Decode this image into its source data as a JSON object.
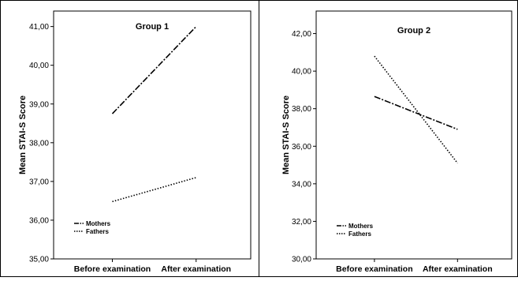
{
  "chart_data": [
    {
      "type": "line",
      "title": "Group 1",
      "xlabel": "",
      "ylabel": "Mean STAI-S Score",
      "categories": [
        "Before examination",
        "After examination"
      ],
      "ylim": [
        35,
        41.4
      ],
      "yticks": [
        "35,00",
        "36,00",
        "37,00",
        "38,00",
        "39,00",
        "40,00",
        "41,00"
      ],
      "ytick_values": [
        35,
        36,
        37,
        38,
        39,
        40,
        41
      ],
      "grid": false,
      "legend": "bottom-left",
      "series": [
        {
          "name": "Mothers",
          "values": [
            38.75,
            41.0
          ],
          "dash": "dashdot"
        },
        {
          "name": "Fathers",
          "values": [
            36.48,
            37.1
          ],
          "dash": "dotted"
        }
      ]
    },
    {
      "type": "line",
      "title": "Group 2",
      "xlabel": "",
      "ylabel": "Mean STAI-S Score",
      "categories": [
        "Before examination",
        "After examination"
      ],
      "ylim": [
        30,
        43.2
      ],
      "yticks": [
        "30,00",
        "32,00",
        "34,00",
        "36,00",
        "38,00",
        "40,00",
        "42,00"
      ],
      "ytick_values": [
        30,
        32,
        34,
        36,
        38,
        40,
        42
      ],
      "grid": false,
      "legend": "bottom-left",
      "series": [
        {
          "name": "Mothers",
          "values": [
            38.65,
            36.9
          ],
          "dash": "dashdot"
        },
        {
          "name": "Fathers",
          "values": [
            40.8,
            35.1
          ],
          "dash": "dotted"
        }
      ]
    }
  ]
}
